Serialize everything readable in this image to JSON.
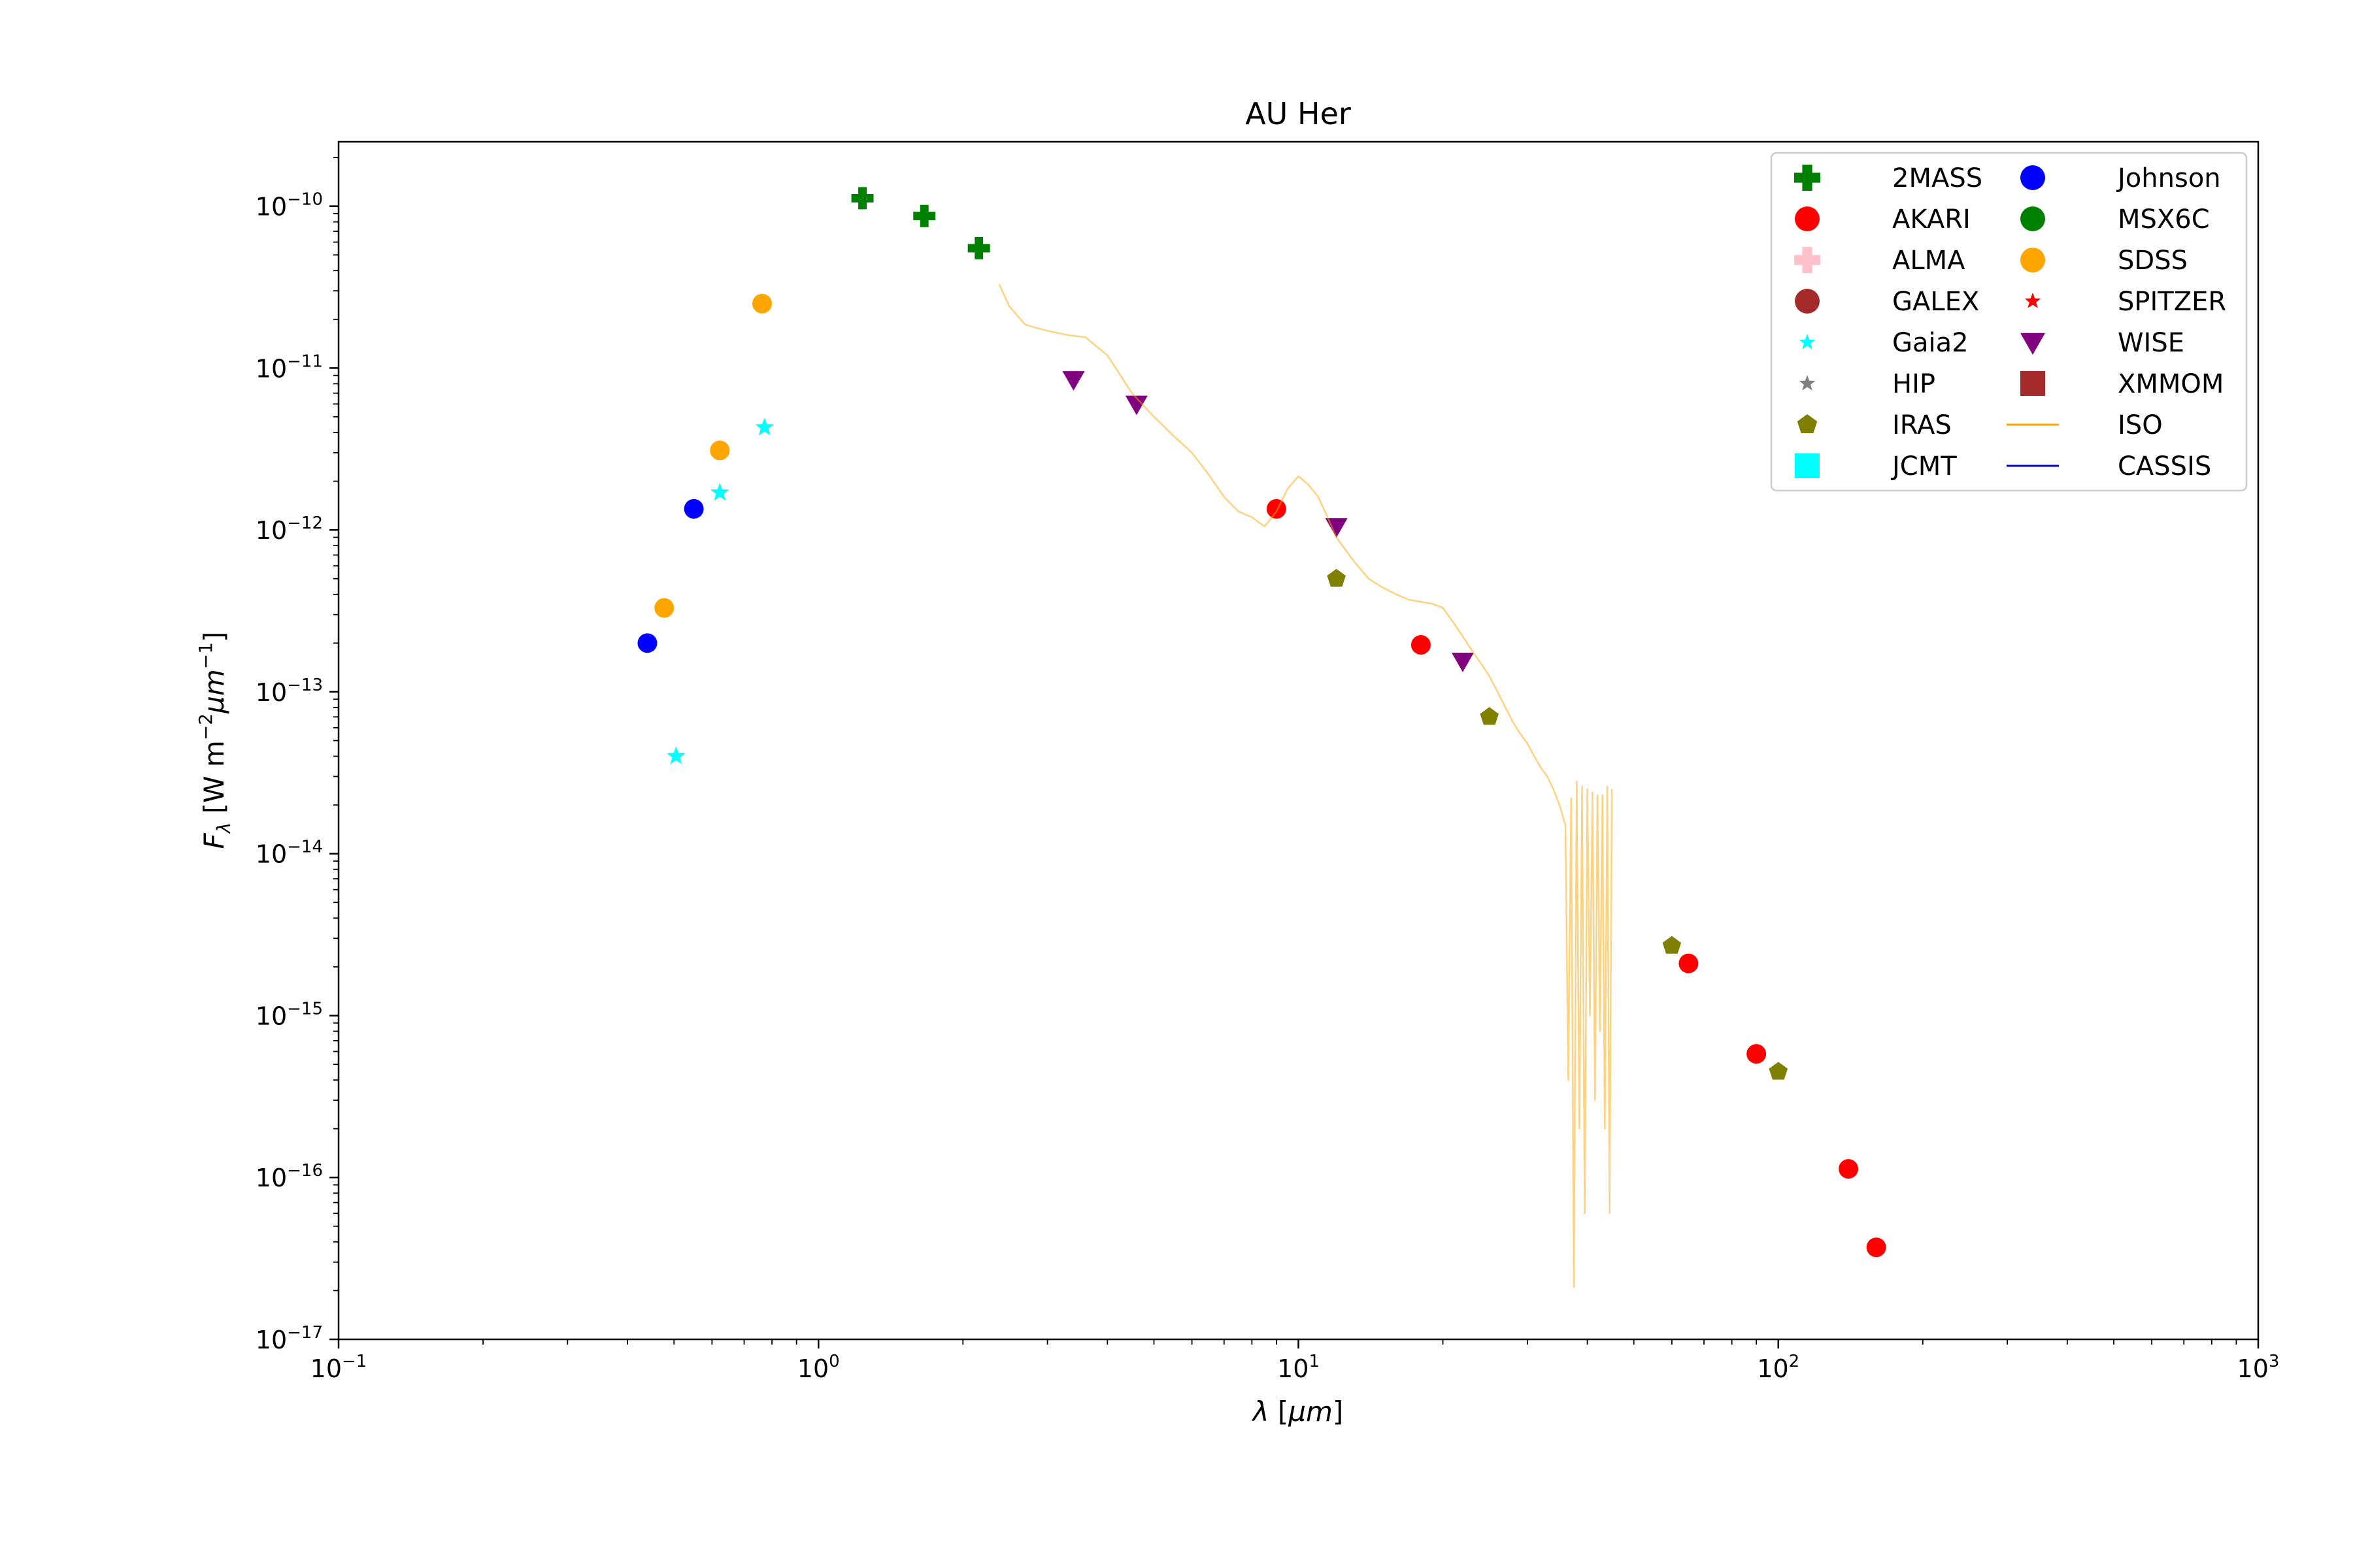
{
  "chart_data": {
    "type": "scatter",
    "title": "AU Her",
    "xlabel": "λ [μm]",
    "ylabel": "F_λ [W m^-2 μm^-1]",
    "xscale": "log",
    "yscale": "log",
    "xlim": [
      0.1,
      1000
    ],
    "ylim": [
      1e-17,
      2.5e-10
    ],
    "x_ticks": [
      {
        "value": 0.1,
        "base": "10",
        "exp": "−1"
      },
      {
        "value": 1,
        "base": "10",
        "exp": "0"
      },
      {
        "value": 10,
        "base": "10",
        "exp": "1"
      },
      {
        "value": 100,
        "base": "10",
        "exp": "2"
      },
      {
        "value": 1000,
        "base": "10",
        "exp": "3"
      }
    ],
    "y_ticks": [
      {
        "value": 1e-17,
        "base": "10",
        "exp": "−17"
      },
      {
        "value": 1e-16,
        "base": "10",
        "exp": "−16"
      },
      {
        "value": 1e-15,
        "base": "10",
        "exp": "−15"
      },
      {
        "value": 1e-14,
        "base": "10",
        "exp": "−14"
      },
      {
        "value": 1e-13,
        "base": "10",
        "exp": "−13"
      },
      {
        "value": 1e-12,
        "base": "10",
        "exp": "−12"
      },
      {
        "value": 1e-11,
        "base": "10",
        "exp": "−11"
      },
      {
        "value": 1e-10,
        "base": "10",
        "exp": "−10"
      }
    ],
    "legend_position": "top-right",
    "grid": false,
    "series": [
      {
        "name": "2MASS",
        "marker": "plus",
        "color": "#008000",
        "points": [
          [
            1.235,
            1.12e-10
          ],
          [
            1.662,
            8.7e-11
          ],
          [
            2.159,
            5.5e-11
          ]
        ]
      },
      {
        "name": "AKARI",
        "marker": "circle",
        "color": "#ff0000",
        "points": [
          [
            9.0,
            1.35e-12
          ],
          [
            18.0,
            1.95e-13
          ],
          [
            65.0,
            2.1e-15
          ],
          [
            90.0,
            5.8e-16
          ],
          [
            140.0,
            1.13e-16
          ],
          [
            160.0,
            3.7e-17
          ]
        ]
      },
      {
        "name": "ALMA",
        "marker": "plus",
        "color": "#ffc0cb",
        "points": []
      },
      {
        "name": "GALEX",
        "marker": "circle",
        "color": "#a52a2a",
        "points": []
      },
      {
        "name": "Gaia2",
        "marker": "star",
        "color": "#00ffff",
        "points": [
          [
            0.505,
            4e-14
          ],
          [
            0.623,
            1.7e-12
          ],
          [
            0.772,
            4.3e-12
          ]
        ]
      },
      {
        "name": "HIP",
        "marker": "star",
        "color": "#808080",
        "points": []
      },
      {
        "name": "IRAS",
        "marker": "pentagon",
        "color": "#808000",
        "points": [
          [
            12.0,
            5e-13
          ],
          [
            25.0,
            7e-14
          ],
          [
            60.0,
            2.7e-15
          ],
          [
            100.0,
            4.5e-16
          ]
        ]
      },
      {
        "name": "JCMT",
        "marker": "square",
        "color": "#00ffff",
        "points": []
      },
      {
        "name": "Johnson",
        "marker": "circle",
        "color": "#0000ff",
        "points": [
          [
            0.44,
            2e-13
          ],
          [
            0.55,
            1.35e-12
          ]
        ]
      },
      {
        "name": "MSX6C",
        "marker": "circle",
        "color": "#008000",
        "points": []
      },
      {
        "name": "SDSS",
        "marker": "circle",
        "color": "#ffa500",
        "points": [
          [
            0.477,
            3.3e-13
          ],
          [
            0.623,
            3.1e-12
          ],
          [
            0.763,
            2.5e-11
          ]
        ]
      },
      {
        "name": "SPITZER",
        "marker": "star",
        "color": "#ff0000",
        "points": []
      },
      {
        "name": "WISE",
        "marker": "triangle-down",
        "color": "#800080",
        "points": [
          [
            3.4,
            8.5e-12
          ],
          [
            4.6,
            6e-12
          ],
          [
            12.0,
            1.05e-12
          ],
          [
            22.0,
            1.55e-13
          ]
        ]
      },
      {
        "name": "XMMOM",
        "marker": "square",
        "color": "#a52a2a",
        "points": []
      },
      {
        "name": "ISO",
        "marker": "line",
        "color": "#ffa500",
        "points": [
          [
            2.38,
            3.3e-11
          ],
          [
            2.5,
            2.4e-11
          ],
          [
            2.7,
            1.85e-11
          ],
          [
            3.0,
            1.7e-11
          ],
          [
            3.3,
            1.6e-11
          ],
          [
            3.6,
            1.55e-11
          ],
          [
            4.0,
            1.2e-11
          ],
          [
            4.5,
            7e-12
          ],
          [
            5.0,
            5e-12
          ],
          [
            5.5,
            3.8e-12
          ],
          [
            6.0,
            3e-12
          ],
          [
            6.5,
            2.2e-12
          ],
          [
            7.0,
            1.6e-12
          ],
          [
            7.5,
            1.3e-12
          ],
          [
            8.0,
            1.2e-12
          ],
          [
            8.5,
            1.05e-12
          ],
          [
            9.0,
            1.3e-12
          ],
          [
            9.5,
            1.8e-12
          ],
          [
            10.0,
            2.15e-12
          ],
          [
            10.5,
            1.9e-12
          ],
          [
            11.0,
            1.6e-12
          ],
          [
            11.5,
            1.2e-12
          ],
          [
            12.0,
            9e-13
          ],
          [
            13.0,
            6.5e-13
          ],
          [
            14.0,
            5e-13
          ],
          [
            15.0,
            4.4e-13
          ],
          [
            16.0,
            4e-13
          ],
          [
            17.0,
            3.7e-13
          ],
          [
            18.0,
            3.6e-13
          ],
          [
            19.0,
            3.5e-13
          ],
          [
            20.0,
            3.3e-13
          ],
          [
            21.0,
            2.7e-13
          ],
          [
            22.0,
            2.2e-13
          ],
          [
            23.0,
            1.8e-13
          ],
          [
            24.0,
            1.5e-13
          ],
          [
            25.0,
            1.25e-13
          ],
          [
            26.0,
            1e-13
          ],
          [
            27.0,
            8e-14
          ],
          [
            28.0,
            6.5e-14
          ],
          [
            29.0,
            5.5e-14
          ],
          [
            30.0,
            4.8e-14
          ],
          [
            31.0,
            4e-14
          ],
          [
            32.0,
            3.4e-14
          ],
          [
            33.0,
            3e-14
          ],
          [
            34.0,
            2.5e-14
          ],
          [
            35.0,
            2e-14
          ],
          [
            36.0,
            1.5e-14
          ],
          [
            36.5,
            4e-16
          ],
          [
            37.0,
            2.2e-14
          ],
          [
            37.5,
            2.1e-17
          ],
          [
            38.0,
            2.8e-14
          ],
          [
            38.5,
            2e-16
          ],
          [
            39.0,
            2.6e-14
          ],
          [
            39.5,
            6e-17
          ],
          [
            40.0,
            2.5e-14
          ],
          [
            40.5,
            1e-15
          ],
          [
            41.0,
            2.4e-14
          ],
          [
            41.5,
            3e-16
          ],
          [
            42.0,
            2.3e-14
          ],
          [
            42.5,
            8e-16
          ],
          [
            43.0,
            2.3e-14
          ],
          [
            43.5,
            2e-16
          ],
          [
            44.0,
            2.6e-14
          ],
          [
            44.5,
            6e-17
          ],
          [
            45.0,
            2.5e-14
          ]
        ]
      },
      {
        "name": "CASSIS",
        "marker": "line",
        "color": "#0000cd",
        "points": []
      }
    ]
  }
}
